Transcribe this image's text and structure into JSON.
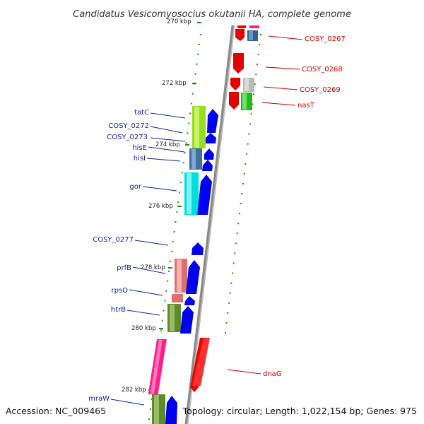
{
  "title": "Candidatus Vesicomyosocius okutanii HA, complete genome",
  "footer": {
    "accession": "Accession: NC_009465",
    "summary": "Topology: circular; Length: 1,022,154 bp; Genes: 975"
  },
  "colors": {
    "backbone": "#7f7f7f",
    "tick": "#1f8a1f",
    "left_label": "#1a1aa6",
    "right_label": "#cc0000"
  },
  "ticks": [
    {
      "label": "270 kbp"
    },
    {
      "label": "272 kbp"
    },
    {
      "label": "274 kbp"
    },
    {
      "label": "276 kbp"
    },
    {
      "label": "278 kbp"
    },
    {
      "label": "280 kbp"
    },
    {
      "label": "282 kbp"
    }
  ],
  "genes_left": [
    {
      "label": "tatC"
    },
    {
      "label": "COSY_0272"
    },
    {
      "label": "COSY_0273"
    },
    {
      "label": "hisE"
    },
    {
      "label": "hisI"
    },
    {
      "label": "gor"
    },
    {
      "label": "COSY_0277"
    },
    {
      "label": "prfB"
    },
    {
      "label": "rpsO"
    },
    {
      "label": "htrB"
    },
    {
      "label": "mraW"
    }
  ],
  "genes_right": [
    {
      "label": "COSY_0267"
    },
    {
      "label": "COSY_0268"
    },
    {
      "label": "COSY_0269"
    },
    {
      "label": "nasT"
    },
    {
      "label": "dnaG"
    }
  ]
}
